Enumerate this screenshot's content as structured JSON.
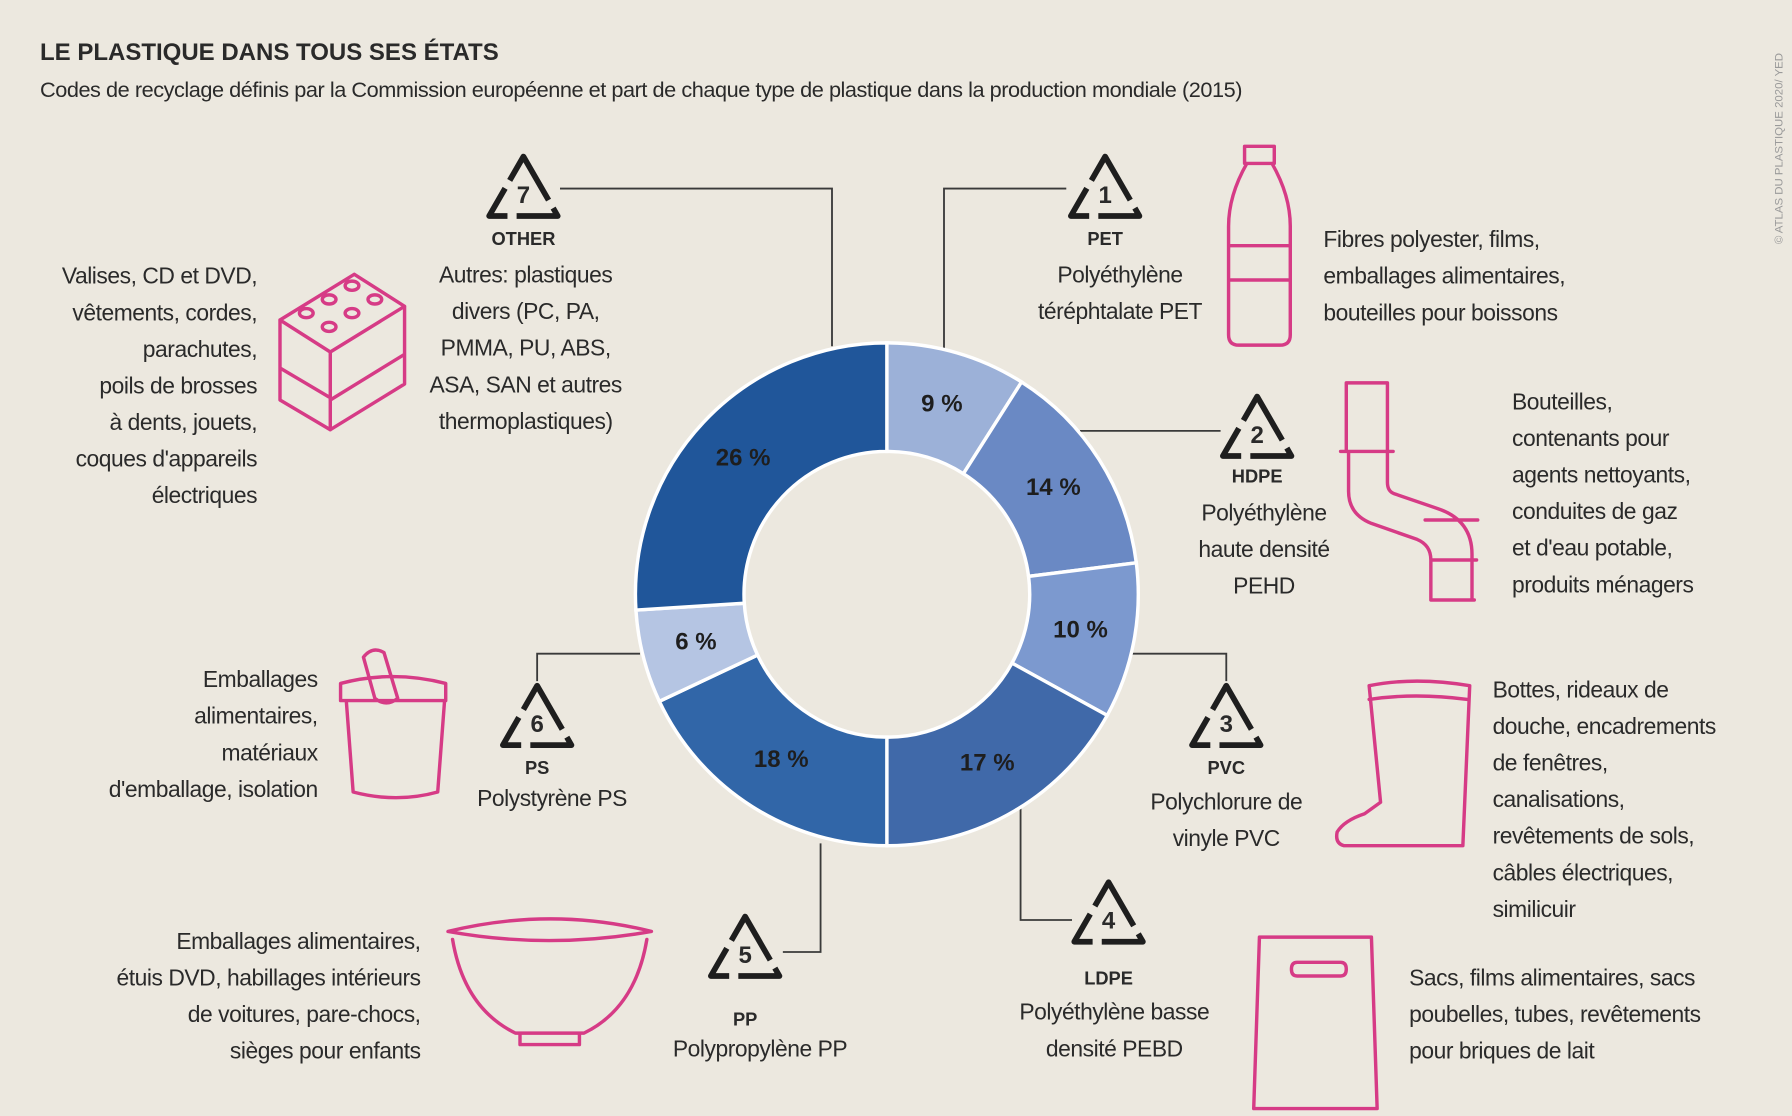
{
  "chart_data": {
    "type": "pie",
    "donut": true,
    "title": "LE PLASTIQUE DANS TOUS SES ÉTATS",
    "subtitle": "Codes de recyclage définis par la Commission européenne et part de chaque type de plastique dans la production mondiale (2015)",
    "credit": "© ATLAS DU PLASTIQUE 2020/ YED",
    "categories": [
      "PET",
      "HDPE",
      "PVC",
      "LDPE",
      "PP",
      "PS",
      "OTHER"
    ],
    "values": [
      9,
      14,
      10,
      17,
      18,
      6,
      26
    ],
    "value_labels": [
      "9 %",
      "14 %",
      "10 %",
      "17 %",
      "18 %",
      "6 %",
      "26 %"
    ],
    "colors": [
      "#9cb1d8",
      "#6a89c4",
      "#7c99cf",
      "#4069a9",
      "#3166a8",
      "#b5c5e3",
      "#20569a"
    ],
    "codes": [
      "1",
      "2",
      "3",
      "4",
      "5",
      "6",
      "7"
    ],
    "names": [
      [
        "Polyéthylène",
        "téréphtalate PET"
      ],
      [
        "Polyéthylène",
        "haute densité",
        "PEHD"
      ],
      [
        "Polychlorure de",
        "vinyle PVC"
      ],
      [
        "Polyéthylène basse",
        "densité PEBD"
      ],
      [
        "Polypropylène PP"
      ],
      [
        "Polystyrène PS"
      ],
      [
        "Autres: plastiques",
        "divers (PC, PA,",
        "PMMA, PU, ABS,",
        "ASA, SAN  et autres",
        "thermoplastiques)"
      ]
    ],
    "uses": [
      [
        "Fibres polyester, films,",
        "emballages alimentaires,",
        "bouteilles pour boissons"
      ],
      [
        "Bouteilles,",
        "contenants pour",
        "agents nettoyants,",
        "conduites de gaz",
        "et d'eau potable,",
        "produits ménagers"
      ],
      [
        "Bottes, rideaux de",
        "douche, encadrements",
        "de fenêtres,",
        "canalisations,",
        "revêtements de sols,",
        "câbles électriques,",
        "similicuir"
      ],
      [
        "Sacs, films alimentaires, sacs",
        "poubelles, tubes, revêtements",
        "pour briques de lait"
      ],
      [
        "Emballages alimentaires,",
        "étuis DVD, habillages intérieurs",
        "de voitures, pare-chocs,",
        "sièges pour enfants"
      ],
      [
        "Emballages",
        "alimentaires,",
        "matériaux",
        "d'emballage, isolation"
      ],
      [
        "Valises, CD et DVD,",
        "vêtements, cordes,",
        "parachutes,",
        "poils de brosses",
        "à dents, jouets,",
        "coques d'appareils",
        "électriques"
      ]
    ]
  }
}
